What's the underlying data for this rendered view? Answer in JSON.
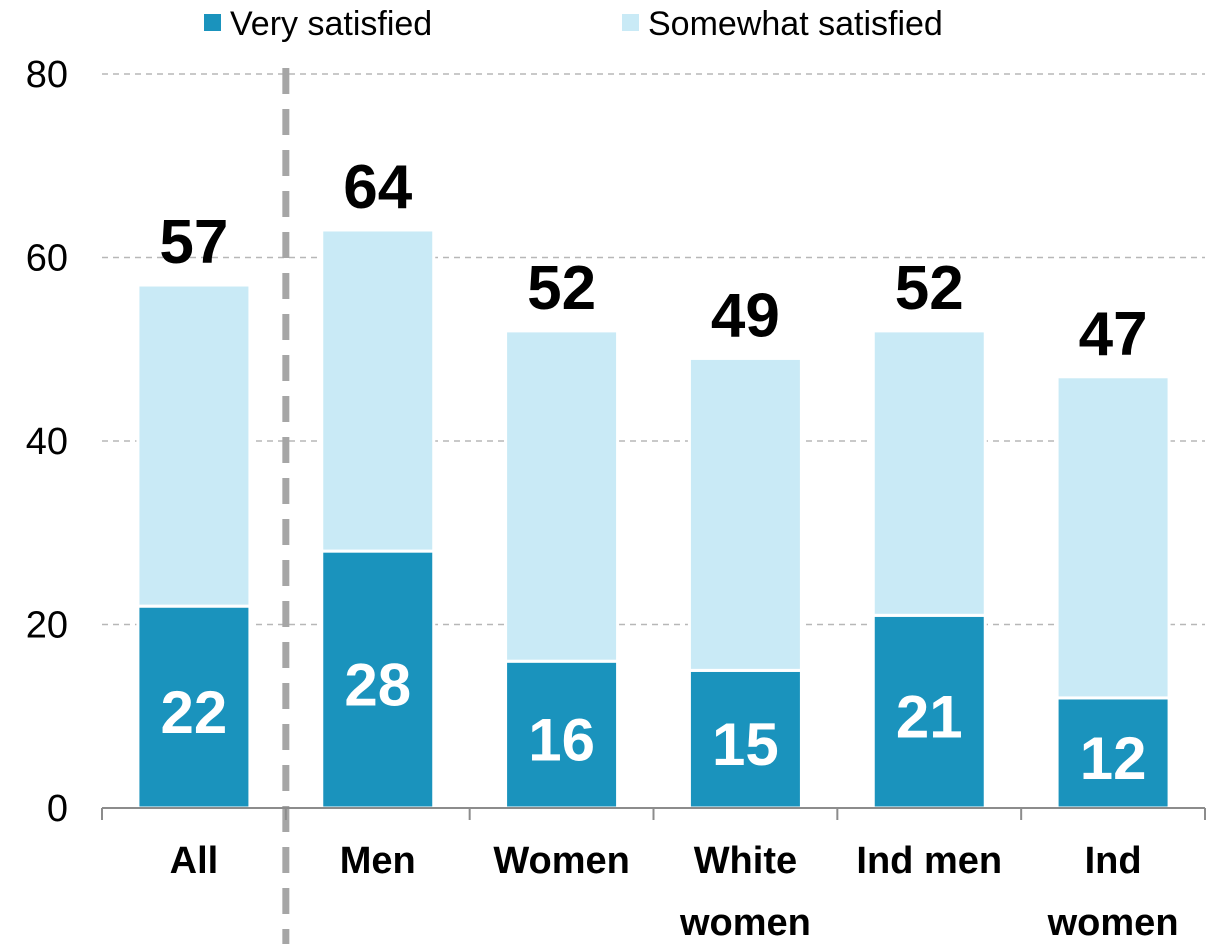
{
  "chart_data": {
    "type": "bar",
    "stacked": true,
    "categories": [
      "All",
      "Men",
      "Women",
      "White women",
      "Ind men",
      "Ind women"
    ],
    "category_lines": [
      [
        "All"
      ],
      [
        "Men"
      ],
      [
        "Women"
      ],
      [
        "White",
        "women"
      ],
      [
        "Ind men"
      ],
      [
        "Ind",
        "women"
      ]
    ],
    "series": [
      {
        "name": "Very satisfied",
        "values": [
          22,
          28,
          16,
          15,
          21,
          12
        ],
        "color": "#1a93bd"
      },
      {
        "name": "Somewhat satisfied",
        "values": [
          35,
          35,
          36,
          34,
          31,
          35
        ],
        "color": "#c9eaf6"
      }
    ],
    "totals": [
      57,
      64,
      52,
      49,
      52,
      47
    ],
    "ylim": [
      0,
      80
    ],
    "yticks": [
      0,
      20,
      40,
      60,
      80
    ],
    "grid": true,
    "legend_position": "top",
    "separator_after_category": "All"
  }
}
